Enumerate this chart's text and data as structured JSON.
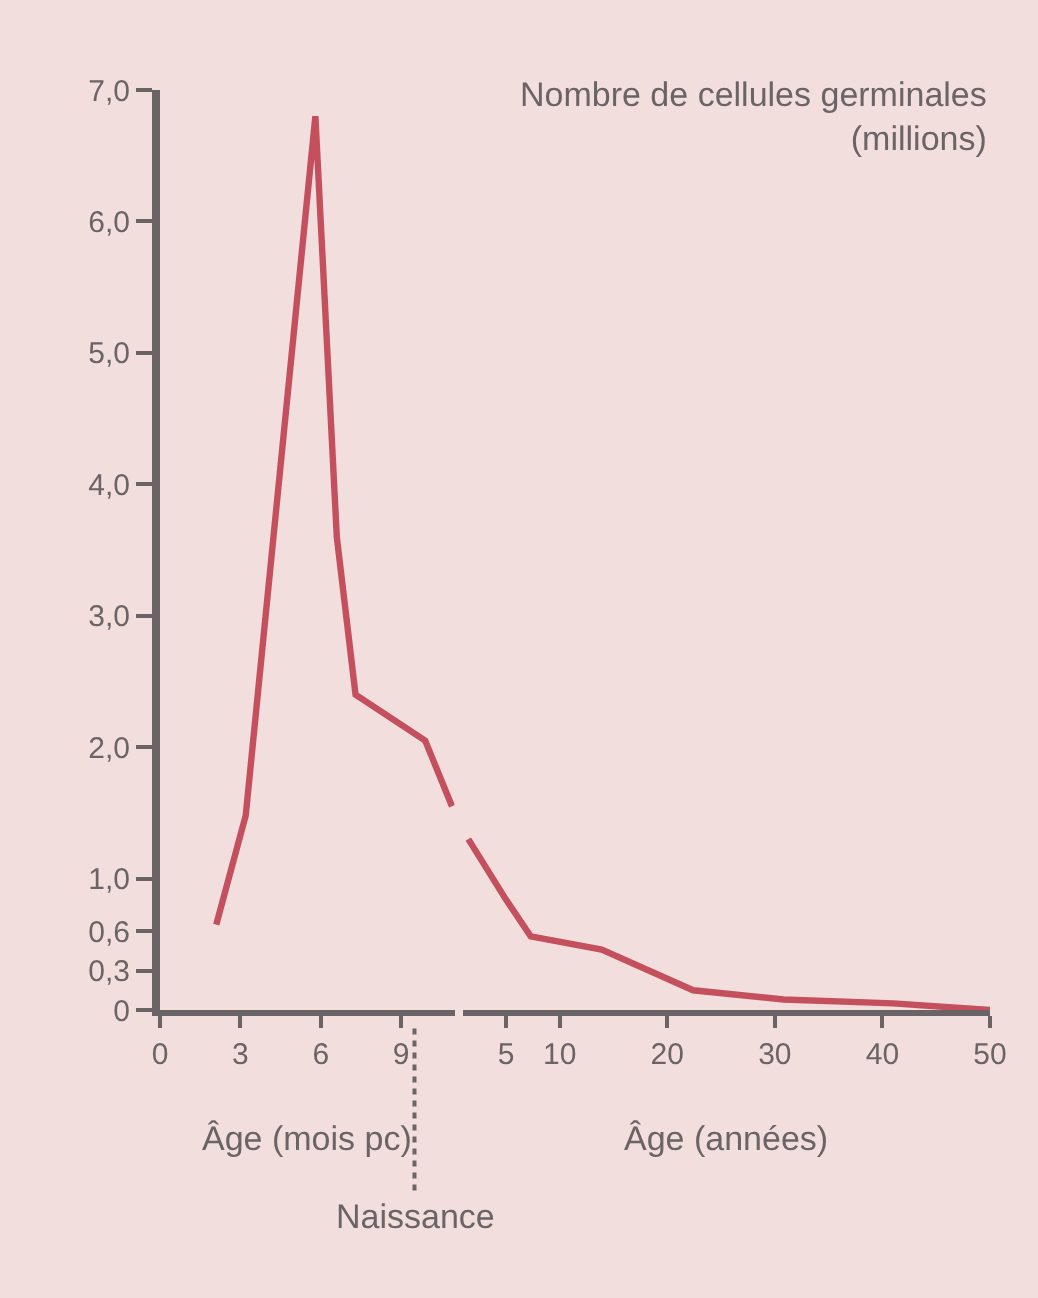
{
  "chart_data": [
    {
      "type": "line",
      "ylabel": "Nombre de cellules germinales\n(millions)",
      "xlabel": "Âge (mois pc)",
      "x": [
        2.1,
        3.2,
        5.8,
        6.6,
        7.3,
        9.9,
        10.9
      ],
      "series": [
        {
          "color": "#c4505e",
          "values": [
            0.65,
            1.48,
            6.8,
            3.6,
            2.4,
            2.05,
            1.55
          ]
        }
      ],
      "xlim": [
        0,
        11
      ],
      "xticks": [
        0,
        3,
        6,
        9
      ],
      "ylim": [
        0,
        7
      ],
      "yticks": [
        0,
        {
          "value": 0.3,
          "label": "0,3"
        },
        {
          "value": 0.6,
          "label": "0,6"
        },
        {
          "value": 1,
          "label": "1,0"
        },
        {
          "value": 2,
          "label": "2,0"
        },
        {
          "value": 3,
          "label": "3,0"
        },
        {
          "value": 4,
          "label": "4,0"
        },
        {
          "value": 5,
          "label": "5,0"
        },
        {
          "value": 6,
          "label": "6,0"
        },
        {
          "value": 7,
          "label": "7,0"
        }
      ],
      "ref_lines": [
        {
          "axis": "x",
          "value": 9.5,
          "label": "Naissance",
          "line_style": "dotted",
          "color": "#6b6466"
        }
      ],
      "grid": false,
      "marker": "none",
      "line_style": "solid"
    },
    {
      "type": "line",
      "xlabel": "Âge (années)",
      "x": [
        1.5,
        5,
        7.3,
        13.9,
        22.4,
        30.8,
        41,
        50
      ],
      "series": [
        {
          "color": "#c4505e",
          "values": [
            1.3,
            0.84,
            0.56,
            0.46,
            0.15,
            0.08,
            0.05,
            0
          ]
        }
      ],
      "xlim": [
        1,
        50
      ],
      "xticks": [
        5,
        10,
        20,
        30,
        40,
        50
      ],
      "ylim": [
        0,
        7
      ],
      "tick_labels": "x",
      "grid": false,
      "marker": "none",
      "line_style": "solid"
    }
  ]
}
